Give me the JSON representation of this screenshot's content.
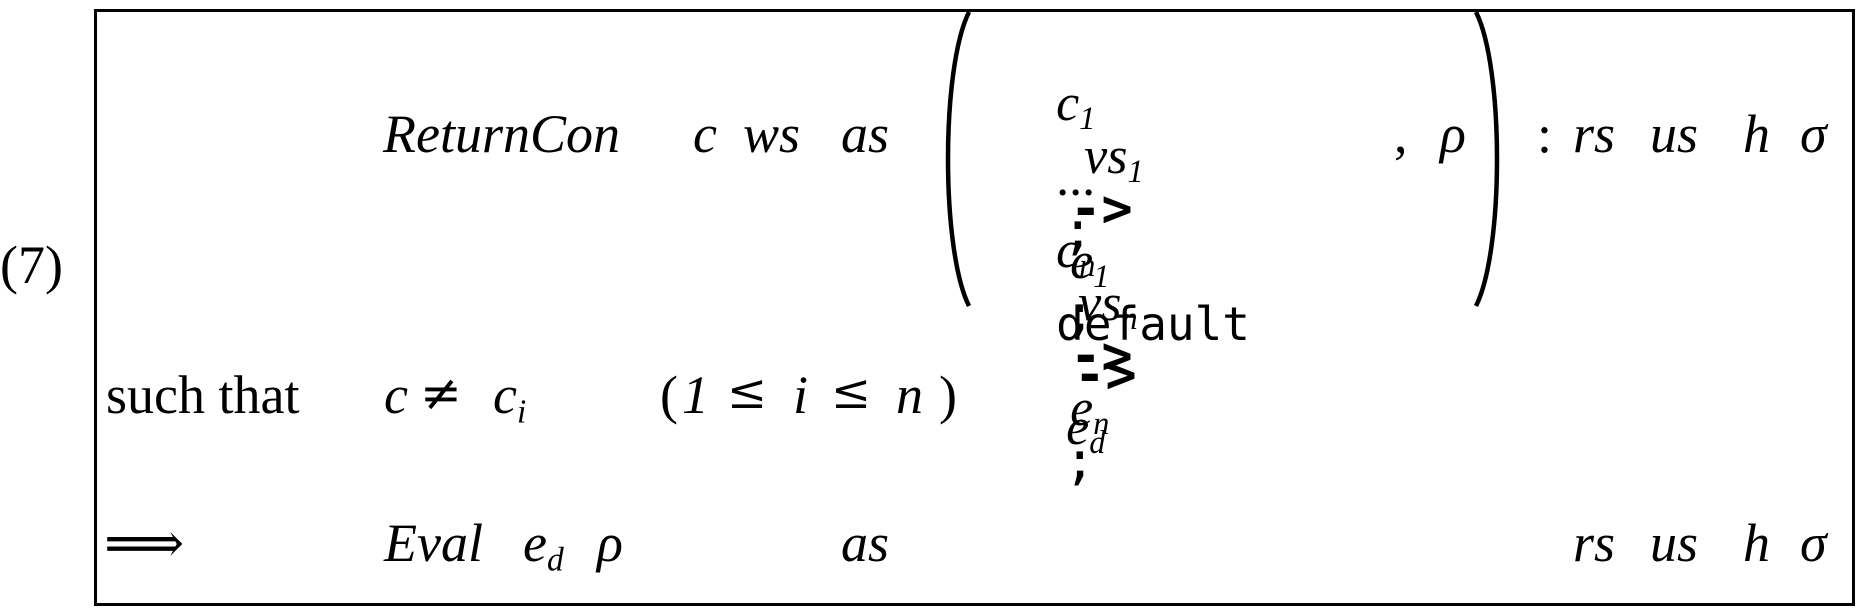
{
  "rule": {
    "number": "(7)",
    "premise": {
      "instr": "ReturnCon",
      "c": "c",
      "ws": "ws",
      "as": "as",
      "alts": [
        {
          "con": "c",
          "con_sub": "1",
          "vars": "vs",
          "vars_sub": "1",
          "arrow": "->",
          "expr": "e",
          "expr_sub": "1",
          "sep": ";"
        },
        {
          "dots": "...",
          "sep": ";"
        },
        {
          "con": "c",
          "con_sub": "n",
          "vars": "vs",
          "vars_sub": "n",
          "arrow": "->",
          "expr": "e",
          "expr_sub": "n",
          "sep": ";"
        }
      ],
      "default_keyword": "default",
      "default_arrow": "->",
      "default_expr": "e",
      "default_expr_sub": "d",
      "comma": ",",
      "rho": "ρ",
      "colon": ":",
      "rs": "rs",
      "us": "us",
      "h": "h",
      "sigma": "σ"
    },
    "condition": {
      "text": "such that",
      "lhs": "c",
      "neq": "≠",
      "rhs": "c",
      "rhs_sub": "i",
      "range_open": "(",
      "range_low": "1",
      "le1": "≤",
      "range_var": "i",
      "le2": "≤",
      "range_high": "n",
      "range_close": ")"
    },
    "conclusion": {
      "arrow": "⟹",
      "eval": "Eval",
      "e": "e",
      "e_sub": "d",
      "rho": "ρ",
      "as": "as",
      "rs": "rs",
      "us": "us",
      "h": "h",
      "sigma": "σ"
    }
  }
}
